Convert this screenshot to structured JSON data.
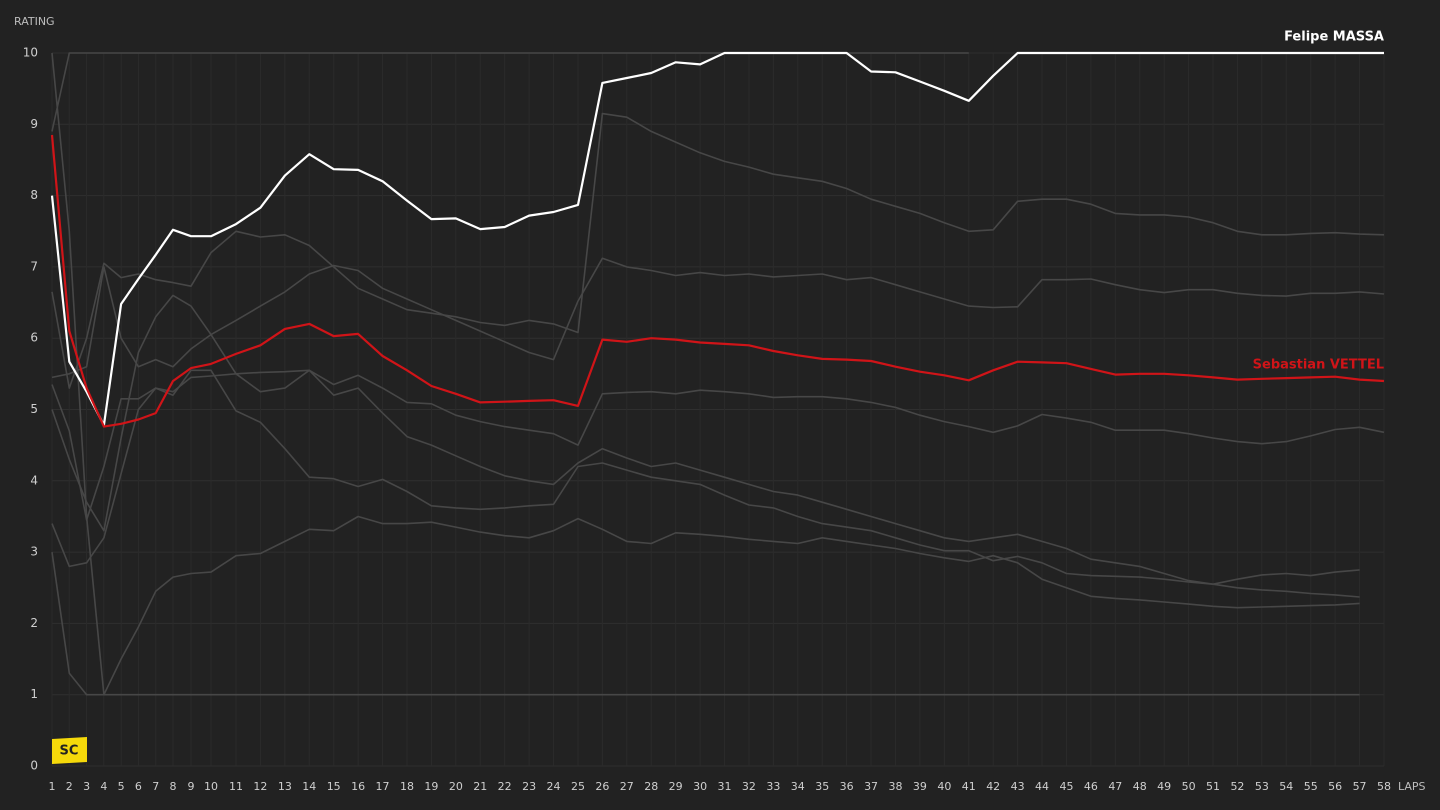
{
  "chart_data": {
    "type": "line",
    "ylabel": "RATING",
    "xlabel": "LAPS",
    "xlim": [
      1,
      58
    ],
    "ylim": [
      0,
      10
    ],
    "yticks": [
      0,
      1,
      2,
      3,
      4,
      5,
      6,
      7,
      8,
      9,
      10
    ],
    "xticks": [
      1,
      2,
      3,
      4,
      5,
      6,
      7,
      8,
      9,
      10,
      11,
      12,
      13,
      14,
      15,
      16,
      17,
      18,
      19,
      20,
      21,
      22,
      23,
      24,
      25,
      26,
      27,
      28,
      29,
      30,
      31,
      32,
      33,
      34,
      35,
      36,
      37,
      38,
      39,
      40,
      41,
      42,
      43,
      44,
      45,
      46,
      47,
      48,
      49,
      50,
      51,
      52,
      53,
      54,
      55,
      56,
      57,
      58
    ],
    "x": [
      1,
      2,
      3,
      4,
      5,
      6,
      7,
      8,
      9,
      10,
      11,
      12,
      13,
      14,
      15,
      16,
      17,
      18,
      19,
      20,
      21,
      22,
      23,
      24,
      25,
      26,
      27,
      28,
      29,
      30,
      31,
      32,
      33,
      34,
      35,
      36,
      37,
      38,
      39,
      40,
      41,
      42,
      43,
      44,
      45,
      46,
      47,
      48,
      49,
      50,
      51,
      52,
      53,
      54,
      55,
      56,
      57,
      58
    ],
    "grid": true,
    "annotations": [
      {
        "label": "SC",
        "lap": 1
      }
    ],
    "series": [
      {
        "color": "#474747",
        "values": [
          8.9,
          10,
          10,
          10,
          10,
          10,
          10,
          10,
          10,
          10,
          10,
          10,
          10,
          10,
          10,
          10,
          10,
          10,
          10,
          10,
          10,
          10,
          10,
          10,
          10,
          10,
          10,
          10,
          10,
          10,
          10,
          10,
          10,
          10,
          10,
          10,
          10,
          10,
          10,
          10,
          10,
          null,
          null,
          null,
          null,
          null,
          null,
          null,
          null,
          null,
          null,
          null,
          null,
          null,
          null,
          null,
          null,
          null
        ]
      },
      {
        "color": "#474747",
        "values": [
          6.65,
          5.3,
          6.0,
          7.05,
          6.85,
          6.9,
          6.82,
          6.78,
          6.73,
          7.2,
          7.5,
          7.42,
          7.45,
          7.3,
          7.0,
          6.7,
          6.55,
          6.4,
          6.35,
          6.3,
          6.22,
          6.18,
          6.25,
          6.2,
          6.08,
          9.15,
          9.1,
          8.9,
          8.75,
          8.6,
          8.48,
          8.4,
          8.3,
          8.25,
          8.2,
          8.1,
          7.95,
          7.85,
          7.75,
          7.62,
          7.5,
          7.52,
          7.92,
          7.95,
          7.95,
          7.88,
          7.75,
          7.73,
          7.73,
          7.7,
          7.62,
          7.5,
          7.45,
          7.45,
          7.47,
          7.48,
          7.46,
          7.45
        ]
      },
      {
        "color": "#474747",
        "values": [
          5.45,
          5.5,
          5.6,
          7.0,
          6.0,
          5.6,
          5.7,
          5.6,
          5.85,
          6.05,
          6.25,
          6.45,
          6.65,
          6.9,
          7.02,
          6.95,
          6.7,
          6.55,
          6.4,
          6.25,
          6.1,
          5.95,
          5.8,
          5.7,
          6.52,
          7.12,
          7.0,
          6.95,
          6.88,
          6.92,
          6.88,
          6.9,
          6.86,
          6.88,
          6.9,
          6.82,
          6.85,
          6.75,
          6.65,
          6.55,
          6.45,
          6.43,
          6.44,
          6.82,
          6.82,
          6.83,
          6.75,
          6.68,
          6.64,
          6.68,
          6.68,
          6.63,
          6.6,
          6.59,
          6.63,
          6.63,
          6.65,
          6.62
        ]
      },
      {
        "color": "#474747",
        "values": [
          5.35,
          4.7,
          3.45,
          4.2,
          5.15,
          5.15,
          5.3,
          5.25,
          5.45,
          5.47,
          5.5,
          5.52,
          5.53,
          5.55,
          5.35,
          5.48,
          5.3,
          5.1,
          5.08,
          4.92,
          4.83,
          4.76,
          4.71,
          4.66,
          4.5,
          5.22,
          5.24,
          5.25,
          5.22,
          5.27,
          5.25,
          5.22,
          5.17,
          5.18,
          5.18,
          5.15,
          5.1,
          5.03,
          4.92,
          4.83,
          4.76,
          4.68,
          4.77,
          4.93,
          4.88,
          4.82,
          4.71,
          4.71,
          4.71,
          4.66,
          4.6,
          4.55,
          4.52,
          4.55,
          4.63,
          4.72,
          4.75,
          4.68
        ]
      },
      {
        "color": "#474747",
        "values": [
          5.0,
          4.3,
          3.7,
          3.3,
          4.6,
          5.8,
          6.3,
          6.6,
          6.45,
          6.05,
          5.5,
          5.25,
          5.3,
          5.55,
          5.2,
          5.3,
          4.95,
          4.62,
          4.5,
          4.35,
          4.2,
          4.07,
          4.0,
          3.95,
          4.25,
          4.45,
          4.32,
          4.2,
          4.25,
          4.15,
          4.05,
          3.95,
          3.85,
          3.8,
          3.7,
          3.6,
          3.5,
          3.4,
          3.3,
          3.2,
          3.15,
          3.2,
          3.25,
          3.15,
          3.05,
          2.9,
          2.85,
          2.8,
          2.7,
          2.6,
          2.55,
          2.5,
          2.47,
          2.45,
          2.42,
          2.4,
          2.37,
          null
        ]
      },
      {
        "color": "#474747",
        "values": [
          3.4,
          2.8,
          2.85,
          3.2,
          4.1,
          5.0,
          5.3,
          5.2,
          5.55,
          5.55,
          4.98,
          4.82,
          4.45,
          4.05,
          4.03,
          3.92,
          4.02,
          3.85,
          3.65,
          3.62,
          3.6,
          3.62,
          3.65,
          3.67,
          4.2,
          4.25,
          4.15,
          4.05,
          4.0,
          3.95,
          3.8,
          3.66,
          3.62,
          3.5,
          3.4,
          3.35,
          3.3,
          3.2,
          3.1,
          3.02,
          3.02,
          2.88,
          2.94,
          2.85,
          2.7,
          2.67,
          2.66,
          2.65,
          2.62,
          2.58,
          2.55,
          2.62,
          2.68,
          2.7,
          2.67,
          2.72,
          2.75,
          null
        ]
      },
      {
        "color": "#474747",
        "values": [
          3.0,
          1.3,
          1.0,
          1.0,
          1.5,
          1.95,
          2.45,
          2.65,
          2.7,
          2.72,
          2.95,
          2.98,
          3.15,
          3.32,
          3.3,
          3.5,
          3.4,
          3.4,
          3.42,
          3.35,
          3.28,
          3.23,
          3.2,
          3.3,
          3.47,
          3.32,
          3.15,
          3.12,
          3.27,
          3.25,
          3.22,
          3.18,
          3.15,
          3.12,
          3.2,
          3.15,
          3.1,
          3.05,
          2.98,
          2.92,
          2.87,
          2.95,
          2.85,
          2.62,
          2.5,
          2.38,
          2.35,
          2.33,
          2.3,
          2.27,
          2.24,
          2.22,
          2.23,
          2.24,
          2.25,
          2.26,
          2.28,
          null
        ]
      },
      {
        "color": "#474747",
        "values": [
          10,
          7.5,
          3.5,
          1.0,
          1,
          1,
          1,
          1,
          1,
          1,
          1,
          1,
          1,
          1,
          1,
          1,
          1,
          1,
          1,
          1,
          1,
          1,
          1,
          1,
          1,
          1,
          1,
          1,
          1,
          1,
          1,
          1,
          1,
          1,
          1,
          1,
          1,
          1,
          1,
          1,
          1,
          1,
          1,
          1,
          1,
          1,
          1,
          1,
          1,
          1,
          1,
          1,
          1,
          1,
          1,
          1,
          1,
          null
        ]
      },
      {
        "name": "Felipe MASSA",
        "color": "#ffffff",
        "values": [
          8.0,
          5.67,
          5.25,
          4.78,
          6.48,
          6.83,
          7.17,
          7.52,
          7.43,
          7.43,
          7.6,
          7.83,
          8.28,
          8.58,
          8.37,
          8.36,
          8.2,
          7.93,
          7.67,
          7.68,
          7.53,
          7.56,
          7.72,
          7.77,
          7.87,
          9.58,
          9.65,
          9.72,
          9.87,
          9.84,
          10,
          10,
          10,
          10,
          10,
          10,
          9.74,
          9.73,
          9.6,
          9.47,
          9.33,
          9.68,
          10,
          10,
          10,
          10,
          10,
          10,
          10,
          10,
          10,
          10,
          10,
          10,
          10,
          10,
          10,
          10
        ]
      },
      {
        "name": "Sebastian VETTEL",
        "color": "#d01418",
        "values": [
          8.85,
          6.1,
          5.3,
          4.76,
          4.8,
          4.86,
          4.95,
          5.4,
          5.58,
          5.64,
          5.78,
          5.9,
          6.13,
          6.2,
          6.03,
          6.06,
          5.75,
          5.55,
          5.33,
          5.22,
          5.1,
          5.11,
          5.12,
          5.13,
          5.05,
          5.98,
          5.95,
          6.0,
          5.98,
          5.94,
          5.92,
          5.9,
          5.82,
          5.76,
          5.71,
          5.7,
          5.68,
          5.6,
          5.53,
          5.48,
          5.41,
          5.55,
          5.67,
          5.66,
          5.65,
          5.57,
          5.49,
          5.5,
          5.5,
          5.48,
          5.45,
          5.42,
          5.43,
          5.44,
          5.45,
          5.46,
          5.42,
          5.4
        ]
      }
    ]
  }
}
